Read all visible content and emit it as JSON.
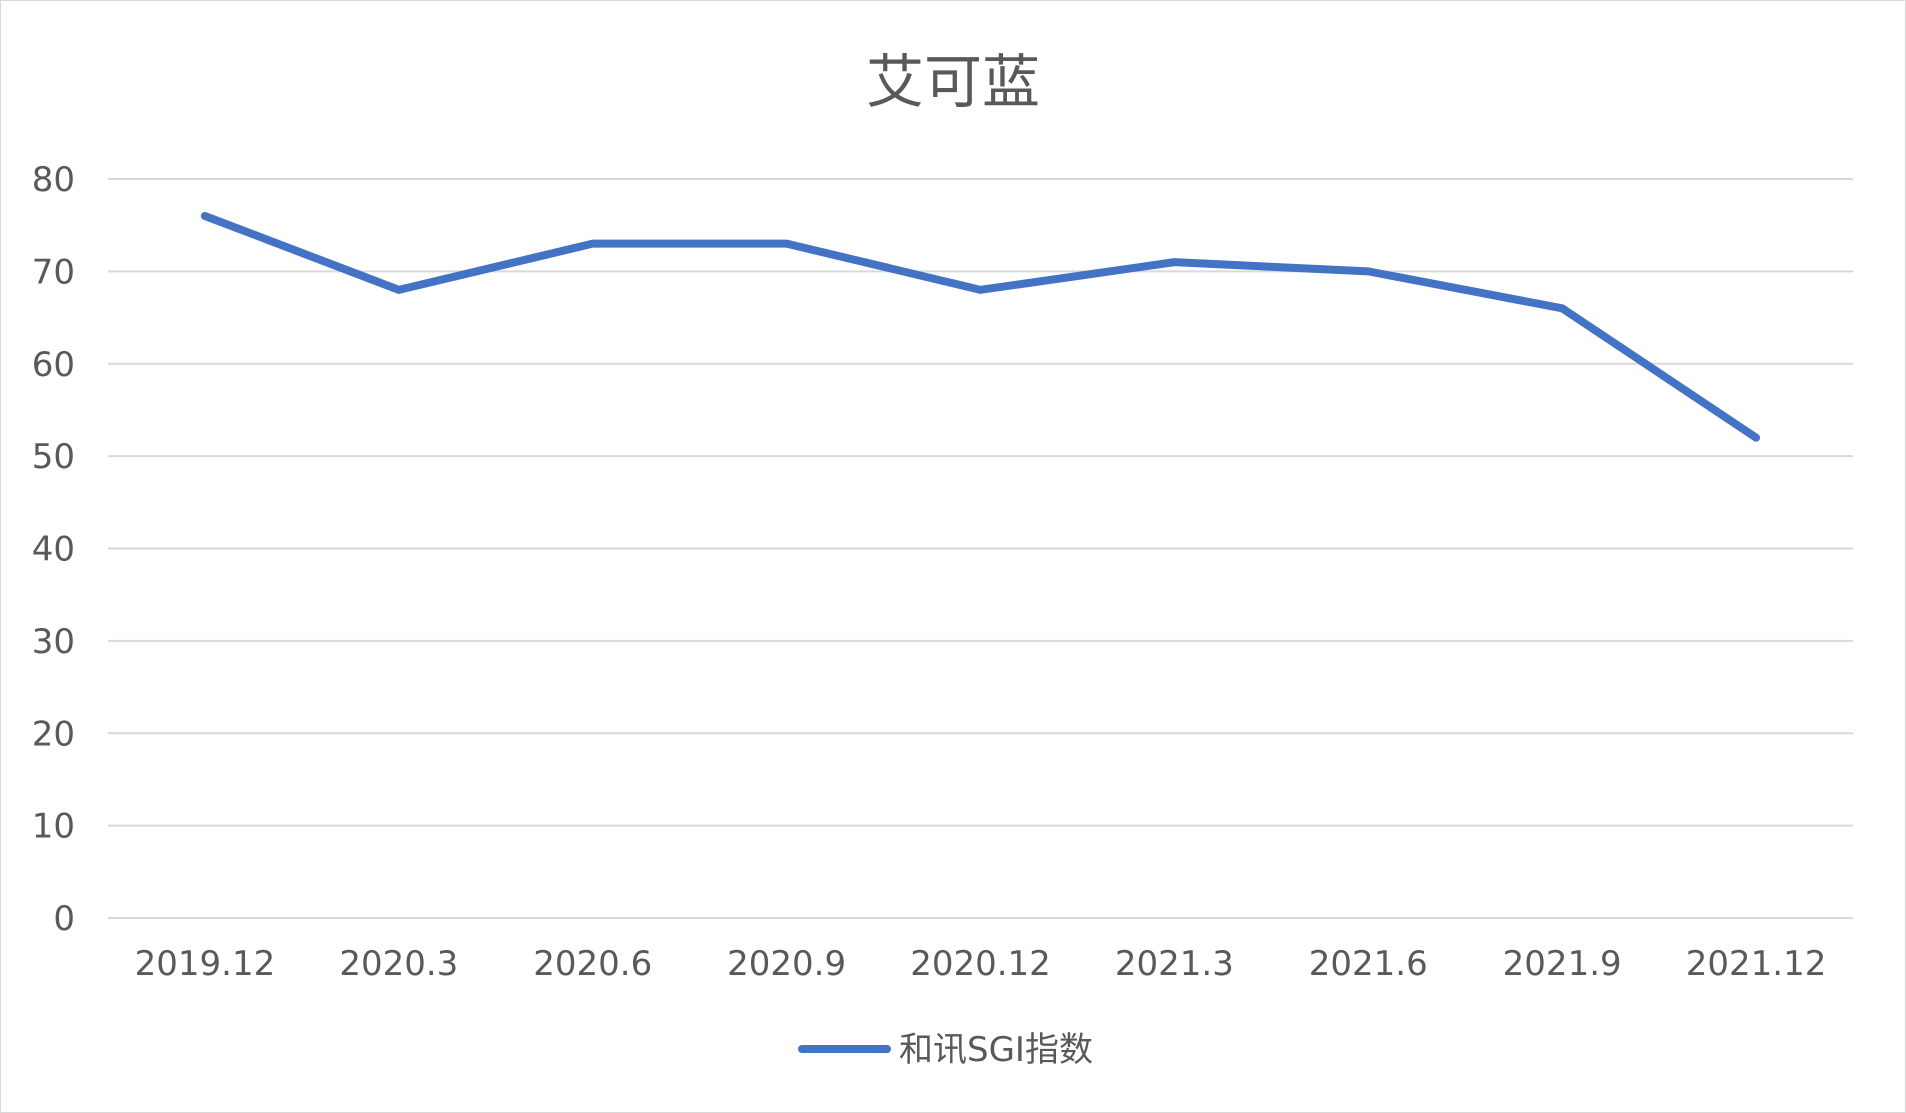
{
  "chart_data": {
    "type": "line",
    "title": "艾可蓝",
    "xlabel": "",
    "ylabel": "",
    "categories": [
      "2019.12",
      "2020.3",
      "2020.6",
      "2020.9",
      "2020.12",
      "2021.3",
      "2021.6",
      "2021.9",
      "2021.12"
    ],
    "series": [
      {
        "name": "和讯SGI指数",
        "values": [
          76,
          68,
          73,
          73,
          68,
          71,
          70,
          66,
          52
        ],
        "color": "#4472C4"
      }
    ],
    "ylim": [
      0,
      80
    ],
    "yticks": [
      0,
      10,
      20,
      30,
      40,
      50,
      60,
      70,
      80
    ],
    "grid": true,
    "legend_position": "bottom"
  }
}
